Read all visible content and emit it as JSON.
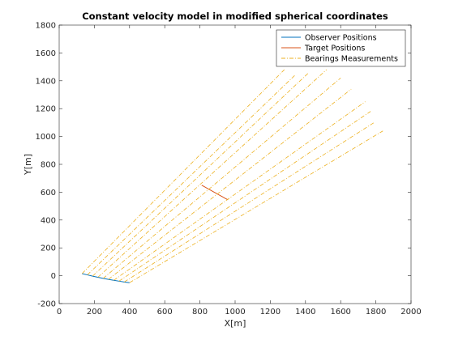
{
  "chart_data": {
    "type": "line",
    "title": "Constant velocity model in modified spherical coordinates",
    "xlabel": "X[m]",
    "ylabel": "Y[m]",
    "xlim": [
      0,
      2000
    ],
    "ylim": [
      -200,
      1800
    ],
    "xticks": [
      0,
      200,
      400,
      600,
      800,
      1000,
      1200,
      1400,
      1600,
      1800,
      2000
    ],
    "yticks": [
      -200,
      0,
      200,
      400,
      600,
      800,
      1000,
      1200,
      1400,
      1600,
      1800
    ],
    "grid": false,
    "legend_position": "top-right",
    "series": [
      {
        "name": "Observer Positions",
        "color": "#0072BD",
        "style": "solid",
        "x": [
          130,
          160,
          190,
          220,
          250,
          280,
          310,
          340,
          370,
          400
        ],
        "y": [
          15,
          6,
          -3,
          -11,
          -19,
          -26,
          -33,
          -39,
          -45,
          -50
        ]
      },
      {
        "name": "Target Positions",
        "color": "#D95319",
        "style": "solid",
        "x": [
          810,
          827,
          844,
          861,
          878,
          895,
          912,
          929,
          946,
          960
        ],
        "y": [
          650,
          638,
          626,
          614,
          602,
          590,
          578,
          566,
          554,
          545
        ]
      },
      {
        "name": "Bearings Measurements",
        "color": "#EDB120",
        "style": "dashdot",
        "segments": [
          {
            "x": [
              130,
              1280
            ],
            "y": [
              15,
              1480
            ]
          },
          {
            "x": [
              160,
              1340
            ],
            "y": [
              6,
              1440
            ]
          },
          {
            "x": [
              190,
              1420
            ],
            "y": [
              -3,
              1460
            ]
          },
          {
            "x": [
              220,
              1520
            ],
            "y": [
              -11,
              1480
            ]
          },
          {
            "x": [
              250,
              1600
            ],
            "y": [
              -19,
              1420
            ]
          },
          {
            "x": [
              280,
              1660
            ],
            "y": [
              -26,
              1340
            ]
          },
          {
            "x": [
              310,
              1740
            ],
            "y": [
              -33,
              1250
            ]
          },
          {
            "x": [
              340,
              1770
            ],
            "y": [
              -39,
              1180
            ]
          },
          {
            "x": [
              370,
              1790
            ],
            "y": [
              -45,
              1100
            ]
          },
          {
            "x": [
              400,
              1840
            ],
            "y": [
              -50,
              1040
            ]
          }
        ]
      }
    ]
  }
}
